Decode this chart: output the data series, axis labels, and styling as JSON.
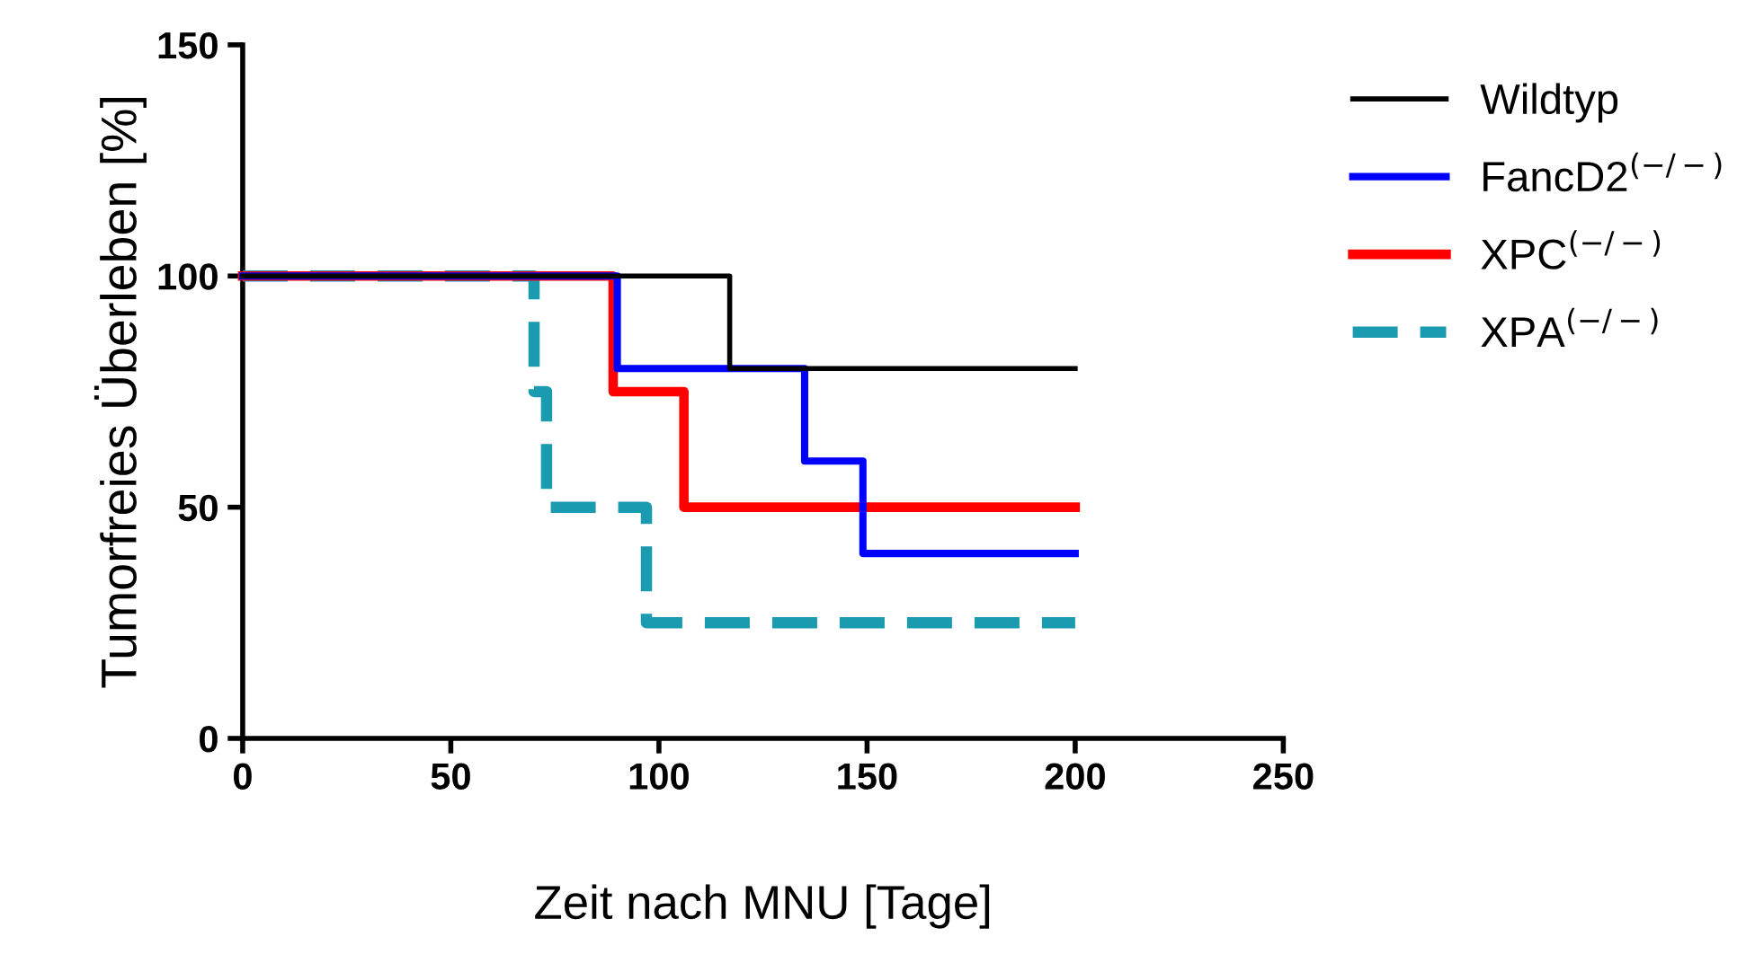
{
  "chart_data": {
    "type": "step",
    "xlabel": "Zeit nach MNU [Tage]",
    "ylabel": "Tumorfreies Überleben [%]",
    "xlim": [
      0,
      250
    ],
    "xticks": [
      0,
      50,
      100,
      150,
      200,
      250
    ],
    "ylim": [
      0,
      150
    ],
    "yticks": [
      0,
      50,
      100,
      150
    ],
    "grid": false,
    "legend": "right",
    "series": [
      {
        "name": "Wildtyp",
        "color": "#000000",
        "line_style": "solid",
        "x": [
          0,
          117,
          200
        ],
        "values": [
          100,
          80,
          80
        ]
      },
      {
        "name": "FancD2$^{(−/−)}$",
        "color": "#0000ff",
        "line_style": "solid",
        "x": [
          0,
          90,
          135,
          149,
          200
        ],
        "values": [
          100,
          80,
          60,
          40,
          40
        ]
      },
      {
        "name": "XPC$^{(−/−)}$",
        "color": "#ff0000",
        "line_style": "solid",
        "x": [
          0,
          89,
          106,
          200
        ],
        "values": [
          100,
          75,
          50,
          50
        ]
      },
      {
        "name": "XPA$^{(−/−)}$",
        "color": "#1a9bb0",
        "line_style": "dashed",
        "x": [
          0,
          70,
          73,
          97,
          200
        ],
        "values": [
          100,
          75,
          50,
          25,
          25
        ]
      }
    ]
  }
}
